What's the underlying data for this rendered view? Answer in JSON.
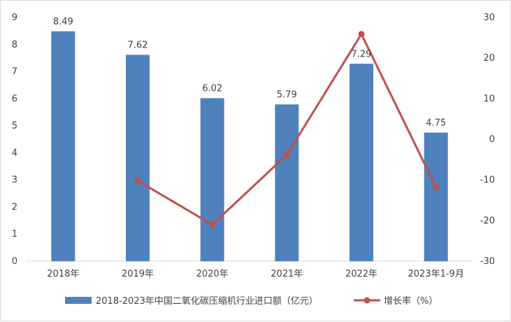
{
  "chart_data": {
    "type": "bar",
    "categories": [
      "2018年",
      "2019年",
      "2020年",
      "2021年",
      "2022年",
      "2023年1-9月"
    ],
    "series": [
      {
        "name": "2018-2023年中国二氧化碳压缩机行业进口额（亿元）",
        "type": "bar",
        "axis": "left",
        "color": "#4f81bd",
        "values": [
          8.49,
          7.62,
          6.02,
          5.79,
          7.29,
          4.75
        ],
        "labels": [
          "8.49",
          "7.62",
          "6.02",
          "5.79",
          "7.29",
          "4.75"
        ]
      },
      {
        "name": "增长率（%）",
        "type": "line",
        "axis": "right",
        "color": "#c0504d",
        "values": [
          null,
          -10.2,
          -21.0,
          -3.8,
          25.9,
          -11.8
        ]
      }
    ],
    "y_left": {
      "min": 0,
      "max": 9,
      "ticks": [
        "0",
        "1",
        "2",
        "3",
        "4",
        "5",
        "6",
        "7",
        "8",
        "9"
      ]
    },
    "y_right": {
      "min": -30,
      "max": 30,
      "ticks": [
        "-30",
        "-20",
        "-10",
        "0",
        "10",
        "20",
        "30"
      ]
    },
    "legend_position": "bottom",
    "grid": false
  }
}
